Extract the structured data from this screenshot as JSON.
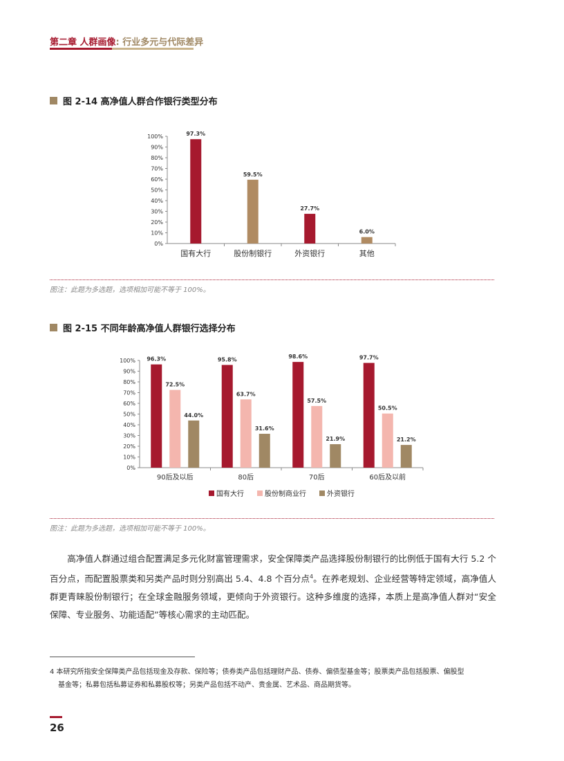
{
  "header": {
    "chapter": "第二章 人群画像",
    "subtitle": ": 行业多元与代际差异"
  },
  "figure1": {
    "title": "图 2-14  高净值人群合作银行类型分布",
    "note": "图注：此题为多选题，选项相加可能不等于 100%。"
  },
  "figure2": {
    "title": "图 2-15  不同年龄高净值人群银行选择分布",
    "note": "图注：此题为多选题，选项相加可能不等于 100%。"
  },
  "chart_data": [
    {
      "type": "bar",
      "categories": [
        "国有大行",
        "股份制银行",
        "外资银行",
        "其他"
      ],
      "values": [
        97.3,
        59.5,
        27.7,
        6.0
      ],
      "value_labels": [
        "97.3%",
        "59.5%",
        "27.7%",
        "6.0%"
      ],
      "colors": [
        "#a6192e",
        "#b08b62",
        "#a6192e",
        "#b08b62"
      ],
      "ylim": [
        0,
        100
      ],
      "yticks": [
        "0%",
        "10%",
        "20%",
        "30%",
        "40%",
        "50%",
        "60%",
        "70%",
        "80%",
        "90%",
        "100%"
      ],
      "grid": false
    },
    {
      "type": "bar",
      "categories": [
        "90后及以后",
        "80后",
        "70后",
        "60后及以前"
      ],
      "series": [
        {
          "name": "国有大行",
          "color": "#a6192e",
          "values": [
            96.3,
            95.8,
            98.6,
            97.7
          ],
          "labels": [
            "96.3%",
            "95.8%",
            "98.6%",
            "97.7%"
          ]
        },
        {
          "name": "股份制商业行",
          "color": "#f4b6ae",
          "values": [
            72.5,
            63.7,
            57.5,
            50.5
          ],
          "labels": [
            "72.5%",
            "63.7%",
            "57.5%",
            "50.5%"
          ]
        },
        {
          "name": "外资银行",
          "color": "#a08864",
          "values": [
            44.0,
            31.6,
            21.9,
            21.2
          ],
          "labels": [
            "44.0%",
            "31.6%",
            "21.9%",
            "21.2%"
          ]
        }
      ],
      "ylim": [
        0,
        100
      ],
      "yticks": [
        "0%",
        "10%",
        "20%",
        "30%",
        "40%",
        "50%",
        "60%",
        "70%",
        "80%",
        "90%",
        "100%"
      ],
      "legend": "bottom",
      "grid": false
    }
  ],
  "body": {
    "para_a": "高净值人群通过组合配置满足多元化财富管理需求，安全保障类产品选择股份制银行的比例低于国有大行 5.2 个百分点，而配置股票类和另类产品时则分别高出 5.4、4.8 个百分点",
    "sup": "4",
    "para_b": "。在养老规划、企业经营等特定领域，高净值人群更青睐股份制银行；在全球金融服务领域，更倾向于外资银行。这种多维度的选择，本质上是高净值人群对“安全保障、专业服务、功能适配”等核心需求的主动匹配。"
  },
  "footnote": {
    "line1": "4  本研究所指安全保障类产品包括现金及存款、保险等；债券类产品包括理财产品、债券、偏债型基金等；股票类产品包括股票、偏股型",
    "line2": "基金等；私募包括私募证券和私募股权等；另类产品包括不动产、贵金属、艺术品、商品期货等。"
  },
  "page_number": "26"
}
